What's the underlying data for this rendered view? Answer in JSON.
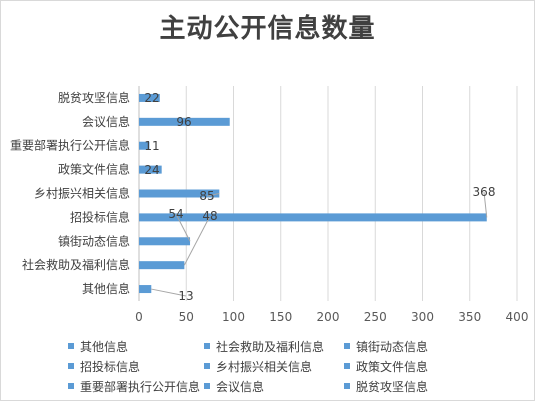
{
  "chart_data": {
    "type": "bar",
    "orientation": "horizontal",
    "title": "主动公开信息数量",
    "categories": [
      "其他信息",
      "社会救助及福利信息",
      "镇街动态信息",
      "招投标信息",
      "乡村振兴相关信息",
      "政策文件信息",
      "重要部署执行公开信息",
      "会议信息",
      "脱贫攻坚信息"
    ],
    "values": [
      13,
      48,
      54,
      368,
      85,
      24,
      11,
      96,
      22
    ],
    "xlim": [
      0,
      400
    ],
    "xticks": [
      0,
      50,
      100,
      150,
      200,
      250,
      300,
      350,
      400
    ],
    "grid": true,
    "legend": "bottom",
    "bar_color": "#5b9bd5"
  }
}
